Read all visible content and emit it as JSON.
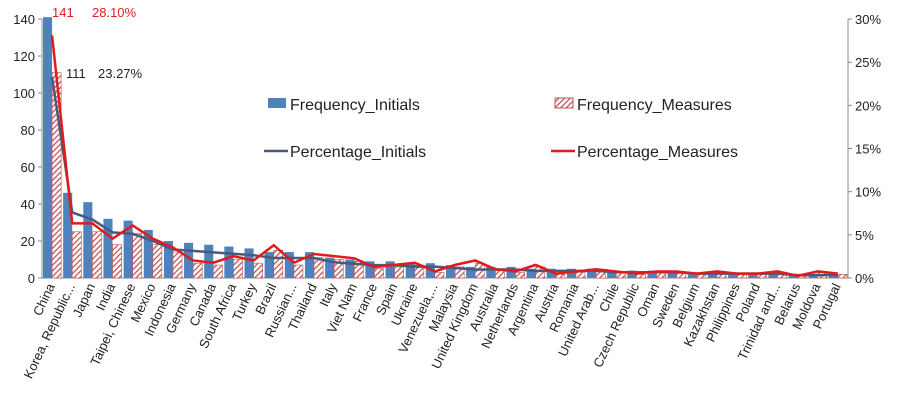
{
  "chart_data": {
    "type": "bar_line",
    "categories": [
      "China",
      "Korea, Republic...",
      "Japan",
      "India",
      "Taipei, Chinese",
      "Mexico",
      "Indonesia",
      "Germany",
      "Canada",
      "South Africa",
      "Turkey",
      "Brazil",
      "Russian...",
      "Thailand",
      "Italy",
      "Viet Nam",
      "France",
      "Spain",
      "Ukraine",
      "Venezuela,...",
      "Malaysia",
      "United Kingdom",
      "Australia",
      "Netherlands",
      "Argentina",
      "Austria",
      "Romania",
      "United Arab...",
      "Chile",
      "Czech Republic",
      "Oman",
      "Sweden",
      "Belgium",
      "Kazakhstan",
      "Philippines",
      "Poland",
      "Trinidad and...",
      "Belarus",
      "Moldova",
      "Portugal"
    ],
    "series": [
      {
        "name": "Frequency_Initials",
        "kind": "bar",
        "color": "#4f81bd",
        "values": [
          141,
          46,
          41,
          32,
          31,
          26,
          20,
          19,
          18,
          17,
          16,
          14,
          14,
          14,
          11,
          10,
          9,
          9,
          8,
          8,
          7,
          6,
          6,
          6,
          5,
          5,
          5,
          5,
          4,
          4,
          4,
          4,
          3,
          3,
          3,
          3,
          3,
          2,
          2,
          2
        ]
      },
      {
        "name": "Frequency_Measures",
        "kind": "bar",
        "color": "#c0504d",
        "pattern": "hatch",
        "values": [
          111,
          25,
          25,
          18,
          24,
          18,
          14,
          8,
          7,
          10,
          8,
          15,
          7,
          11,
          10,
          9,
          5,
          6,
          7,
          3,
          6,
          8,
          4,
          3,
          6,
          2,
          3,
          4,
          3,
          2,
          3,
          3,
          2,
          3,
          2,
          2,
          3,
          1,
          3,
          2
        ]
      },
      {
        "name": "Percentage_Initials",
        "kind": "line",
        "axis": "y2",
        "color": "#4a5a7a",
        "values": [
          23.27,
          7.59,
          6.77,
          5.28,
          5.12,
          4.29,
          3.3,
          3.14,
          2.97,
          2.81,
          2.64,
          2.31,
          2.31,
          2.31,
          1.82,
          1.65,
          1.49,
          1.49,
          1.32,
          1.32,
          1.16,
          0.99,
          0.99,
          0.99,
          0.83,
          0.83,
          0.83,
          0.83,
          0.66,
          0.66,
          0.66,
          0.66,
          0.5,
          0.5,
          0.5,
          0.5,
          0.5,
          0.33,
          0.33,
          0.33
        ],
        "value_labels": [
          "23.27%",
          null,
          null,
          null,
          null,
          null,
          null,
          null,
          null,
          null,
          null,
          null,
          null,
          null,
          null,
          null,
          null,
          null,
          null,
          null,
          null,
          null,
          null,
          null,
          null,
          null,
          null,
          null,
          null,
          null,
          null,
          null,
          null,
          null,
          null,
          null,
          null,
          null,
          null,
          null
        ]
      },
      {
        "name": "Percentage_Measures",
        "kind": "line",
        "axis": "y2",
        "color": "#e31a1c",
        "values": [
          28.1,
          6.33,
          6.33,
          4.56,
          6.08,
          4.56,
          3.54,
          2.03,
          1.77,
          2.53,
          2.03,
          3.8,
          1.77,
          2.78,
          2.53,
          2.28,
          1.27,
          1.52,
          1.77,
          0.76,
          1.52,
          2.03,
          1.01,
          0.76,
          1.52,
          0.51,
          0.76,
          1.01,
          0.76,
          0.51,
          0.76,
          0.76,
          0.51,
          0.76,
          0.51,
          0.51,
          0.76,
          0.25,
          0.76,
          0.51
        ],
        "value_labels": [
          "28.10%",
          null,
          null,
          null,
          null,
          null,
          null,
          null,
          null,
          null,
          null,
          null,
          null,
          null,
          null,
          null,
          null,
          null,
          null,
          null,
          null,
          null,
          null,
          null,
          null,
          null,
          null,
          null,
          null,
          null,
          null,
          null,
          null,
          null,
          null,
          null,
          null,
          null,
          null,
          null
        ]
      }
    ],
    "ylim": [
      0,
      140
    ],
    "yticks": [
      0,
      20,
      40,
      60,
      80,
      100,
      120,
      140
    ],
    "y2lim": [
      0,
      30
    ],
    "y2ticks": [
      {
        "value": 0,
        "label": "0%"
      },
      {
        "value": 5,
        "label": "5%"
      },
      {
        "value": 10,
        "label": "10%"
      },
      {
        "value": 15,
        "label": "15%"
      },
      {
        "value": 20,
        "label": "20%"
      },
      {
        "value": 25,
        "label": "25%"
      },
      {
        "value": 30,
        "label": "30%"
      }
    ],
    "legend": "center",
    "grid": false
  }
}
